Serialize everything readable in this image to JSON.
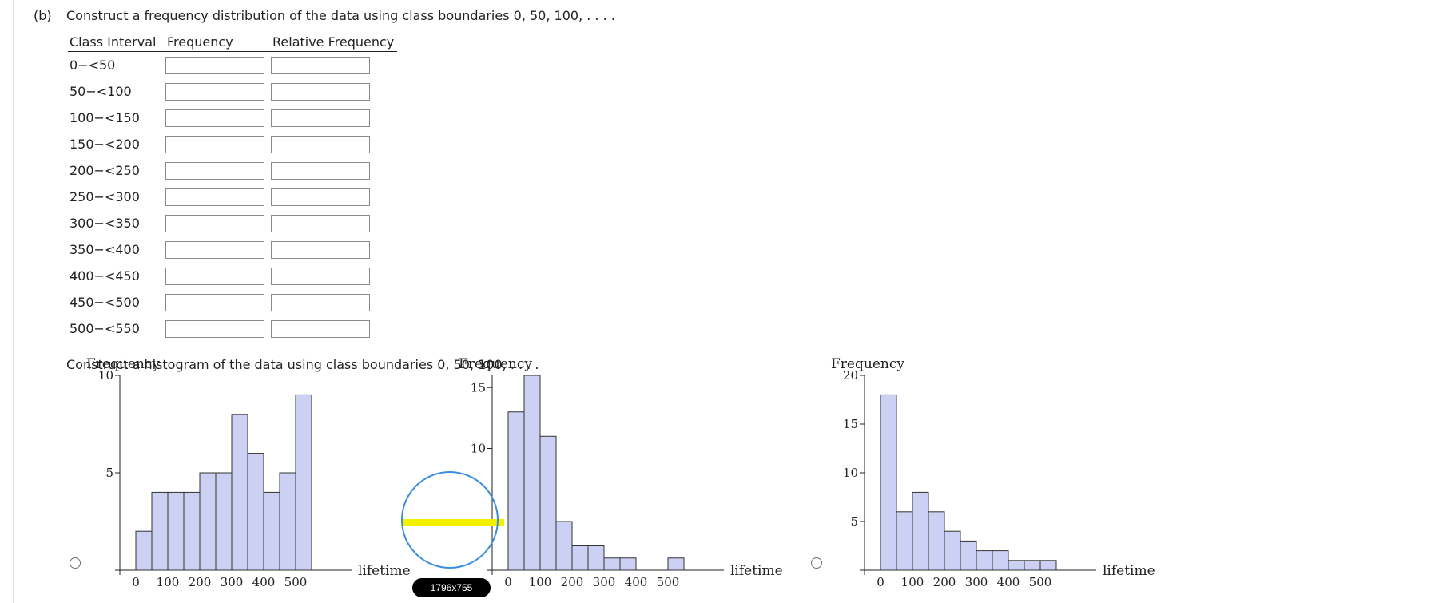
{
  "question": {
    "part_label": "(b)",
    "table_prompt": "Construct a frequency distribution of the data using class boundaries 0, 50, 100, . . . .",
    "histogram_prompt": "Construct a histogram of the data using class boundaries 0, 50, 100, . . . ."
  },
  "table": {
    "headers": [
      "Class Interval",
      "Frequency",
      "Relative Frequency"
    ],
    "rows": [
      {
        "interval": "0−<50",
        "frequency": "",
        "relative": ""
      },
      {
        "interval": "50−<100",
        "frequency": "",
        "relative": ""
      },
      {
        "interval": "100−<150",
        "frequency": "",
        "relative": ""
      },
      {
        "interval": "150−<200",
        "frequency": "",
        "relative": ""
      },
      {
        "interval": "200−<250",
        "frequency": "",
        "relative": ""
      },
      {
        "interval": "250−<300",
        "frequency": "",
        "relative": ""
      },
      {
        "interval": "300−<350",
        "frequency": "",
        "relative": ""
      },
      {
        "interval": "350−<400",
        "frequency": "",
        "relative": ""
      },
      {
        "interval": "400−<450",
        "frequency": "",
        "relative": ""
      },
      {
        "interval": "450−<500",
        "frequency": "",
        "relative": ""
      },
      {
        "interval": "500−<550",
        "frequency": "",
        "relative": ""
      }
    ]
  },
  "overlay": {
    "size_label": "1796x755"
  },
  "colors": {
    "bar_fill": "#ccd0f3",
    "bar_stroke": "#333333",
    "magnifier_ring": "#3b8de0",
    "magnifier_highlight": "#f4f000"
  },
  "chart_data": [
    {
      "type": "bar",
      "ylabel": "Frequency",
      "xlabel": "lifetime",
      "bin_width": 50,
      "bin_starts": [
        0,
        50,
        100,
        150,
        200,
        250,
        300,
        350,
        400,
        450,
        500
      ],
      "values": [
        2,
        4,
        4,
        4,
        5,
        5,
        8,
        6,
        4,
        5,
        9
      ],
      "xlim": [
        0,
        550
      ],
      "ylim": [
        0,
        10
      ],
      "x_ticks": [
        0,
        100,
        200,
        300,
        400,
        500
      ],
      "y_ticks": [
        5,
        10
      ],
      "selected": false
    },
    {
      "type": "bar",
      "ylabel": "Frequency",
      "xlabel": "lifetime",
      "bin_width": 50,
      "bin_starts": [
        0,
        50,
        100,
        150,
        200,
        250,
        300,
        350,
        400,
        450,
        500
      ],
      "values": [
        13,
        16,
        11,
        4,
        2,
        2,
        1,
        1,
        0,
        0,
        1
      ],
      "xlim": [
        0,
        550
      ],
      "ylim": [
        0,
        16
      ],
      "x_ticks": [
        0,
        100,
        200,
        300,
        400,
        500
      ],
      "y_ticks": [
        10,
        15
      ],
      "selected": false
    },
    {
      "type": "bar",
      "ylabel": "Frequency",
      "xlabel": "lifetime",
      "bin_width": 50,
      "bin_starts": [
        0,
        50,
        100,
        150,
        200,
        250,
        300,
        350,
        400,
        450,
        500
      ],
      "values": [
        18,
        6,
        8,
        6,
        4,
        3,
        2,
        2,
        1,
        1,
        1
      ],
      "xlim": [
        0,
        550
      ],
      "ylim": [
        0,
        20
      ],
      "x_ticks": [
        0,
        100,
        200,
        300,
        400,
        500
      ],
      "y_ticks": [
        5,
        10,
        15,
        20
      ],
      "selected": false
    }
  ]
}
